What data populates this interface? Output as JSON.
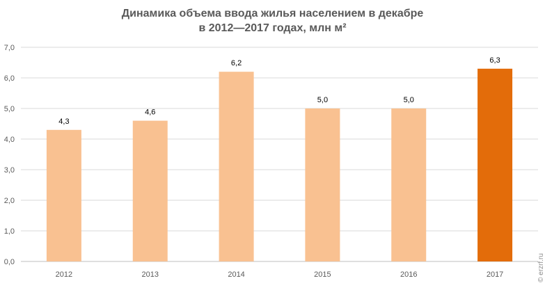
{
  "chart_data": {
    "type": "bar",
    "title_line1": "Динамика объема ввода жилья населением в декабре",
    "title_line2": "в 2012—2017 годах, млн м²",
    "categories": [
      "2012",
      "2013",
      "2014",
      "2015",
      "2016",
      "2017"
    ],
    "values": [
      4.3,
      4.6,
      6.2,
      5.0,
      5.0,
      6.3
    ],
    "value_labels": [
      "4,3",
      "4,6",
      "6,2",
      "5,0",
      "5,0",
      "6,3"
    ],
    "ylim": [
      0,
      7
    ],
    "yticks": [
      0,
      1,
      2,
      3,
      4,
      5,
      6,
      7
    ],
    "ytick_labels": [
      "0,0",
      "1,0",
      "2,0",
      "3,0",
      "4,0",
      "5,0",
      "6,0",
      "7,0"
    ],
    "grid": true,
    "bar_color": "#F9C191",
    "highlight_color": "#E36C0A",
    "highlight_index": 5
  },
  "watermark": "© erzrf.ru"
}
